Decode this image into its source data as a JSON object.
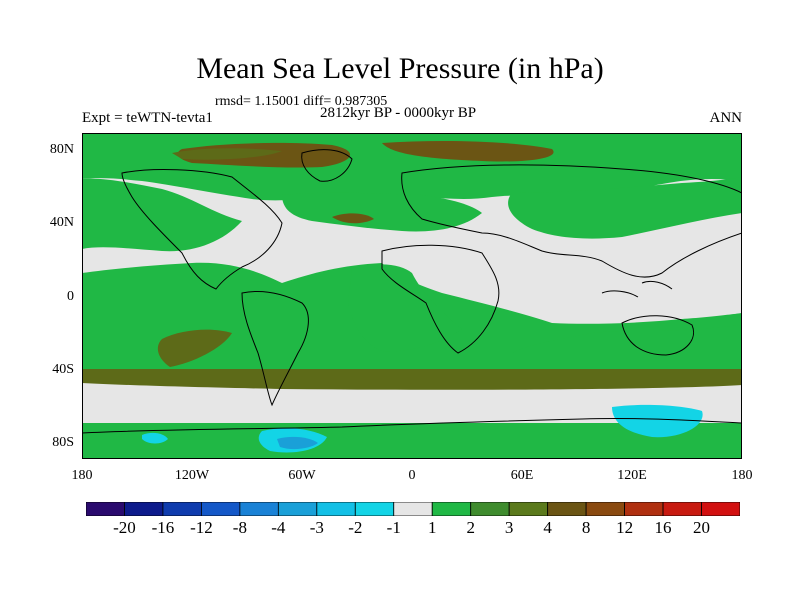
{
  "header": {
    "title": "Mean Sea Level Pressure (in hPa)",
    "stats": "rmsd= 1.15001 diff= 0.987305",
    "period": "2812kyr BP - 0000kyr BP",
    "experiment": "Expt = teWTN-tevta1",
    "season": "ANN"
  },
  "map": {
    "lat_ticks": [
      "80N",
      "40N",
      "0",
      "40S",
      "80S"
    ],
    "lon_ticks": [
      "180",
      "120W",
      "60W",
      "0",
      "60E",
      "120E",
      "180"
    ],
    "colors": {
      "neutral": "#e6e6e6",
      "pos_1_2": "#20b845",
      "pos_2_3": "#4a8a2a",
      "pos_3_4": "#5d6a18",
      "pos_4_8": "#6b5514",
      "neg_1_2": "#13d4e6",
      "neg_2_3": "#1aa0d8"
    }
  },
  "colorbar": {
    "labels": [
      "-20",
      "-16",
      "-12",
      "-8",
      "-4",
      "-3",
      "-2",
      "-1",
      "1",
      "2",
      "3",
      "4",
      "8",
      "12",
      "16",
      "20"
    ],
    "colors": [
      "#2a0a6e",
      "#0d1b8c",
      "#0f3cae",
      "#1458c8",
      "#1a82d6",
      "#1aa0d8",
      "#13c0e6",
      "#13d4e6",
      "#e6e6e6",
      "#20b845",
      "#3f8c2e",
      "#5b7a1c",
      "#6b5514",
      "#8a4a10",
      "#b03010",
      "#c81a10",
      "#d21010"
    ]
  }
}
